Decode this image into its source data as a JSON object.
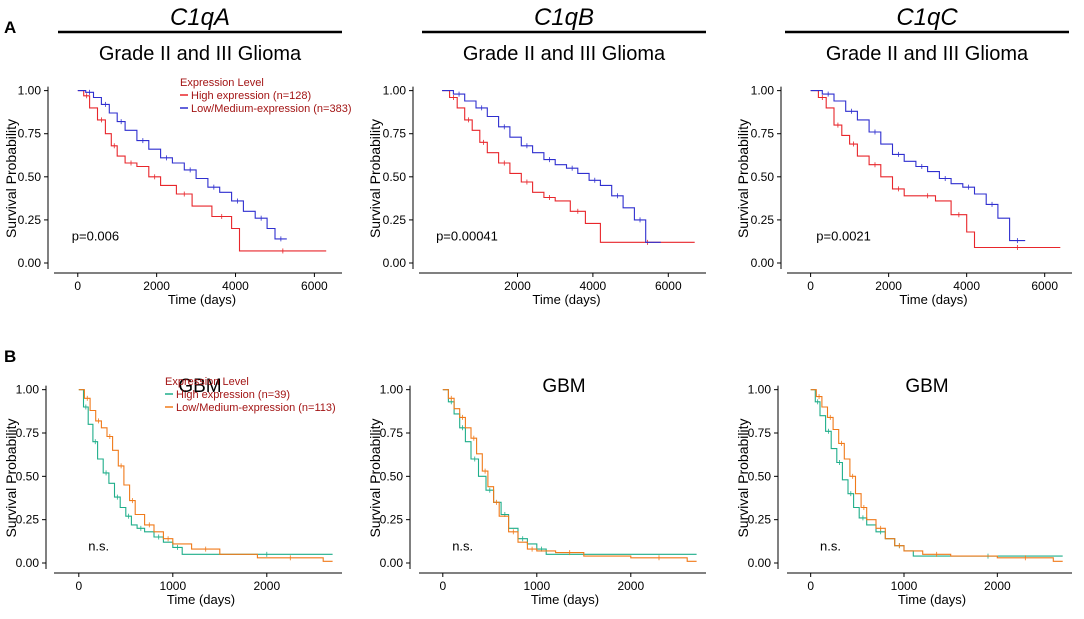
{
  "figure": {
    "panel_labels": [
      "A",
      "B"
    ],
    "gene_headers": [
      "C1qA",
      "C1qB",
      "C1qC"
    ],
    "row_titles": [
      "Grade II and III Glioma",
      "GBM"
    ]
  },
  "legend_title": "Expression Level",
  "colors": {
    "lgg_high": "#e8262b",
    "lgg_low": "#2f2fcf",
    "gbm_high": "#1fae8a",
    "gbm_low": "#f07a1a",
    "legend_text": "#a31515"
  },
  "chart_data": [
    {
      "id": "A1",
      "type": "line",
      "gene": "C1qA",
      "title": "Grade II and III Glioma",
      "xlabel": "Time (days)",
      "ylabel": "Survival Probability",
      "xlim": [
        -400,
        6700
      ],
      "ylim": [
        0,
        1.05
      ],
      "xticks": [
        0,
        2000,
        4000,
        6000
      ],
      "yticks": [
        0.0,
        0.25,
        0.5,
        0.75,
        1.0
      ],
      "ytick_labels": [
        "0.00",
        "0.25",
        "0.50",
        "0.75",
        "1.00"
      ],
      "annotation": "p=0.006",
      "annotation_at": [
        0,
        0.16
      ],
      "legend": {
        "show": true,
        "title": "Expression Level"
      },
      "series": [
        {
          "name": "High expression (n=128)",
          "color": "#e8262b",
          "x": [
            0,
            150,
            300,
            500,
            700,
            850,
            1000,
            1200,
            1500,
            1800,
            2100,
            2500,
            2900,
            3400,
            3900,
            4100,
            6300
          ],
          "y": [
            1.0,
            0.97,
            0.9,
            0.83,
            0.75,
            0.68,
            0.62,
            0.58,
            0.56,
            0.5,
            0.45,
            0.4,
            0.33,
            0.27,
            0.2,
            0.07,
            0.07
          ]
        },
        {
          "name": "Low/Medium-expression (n=383)",
          "color": "#2f2fcf",
          "x": [
            0,
            200,
            400,
            600,
            800,
            1000,
            1200,
            1500,
            1800,
            2100,
            2400,
            2700,
            3000,
            3300,
            3600,
            3900,
            4200,
            4500,
            4800,
            5000,
            5300
          ],
          "y": [
            1.0,
            0.99,
            0.96,
            0.92,
            0.87,
            0.82,
            0.77,
            0.71,
            0.66,
            0.61,
            0.58,
            0.54,
            0.49,
            0.44,
            0.41,
            0.36,
            0.3,
            0.26,
            0.2,
            0.14,
            0.14
          ]
        }
      ]
    },
    {
      "id": "A2",
      "type": "line",
      "gene": "C1qB",
      "title": "Grade II and III Glioma",
      "xlabel": "Time (days)",
      "ylabel": "Survival Probability",
      "xlim": [
        -400,
        7000
      ],
      "ylim": [
        0,
        1.05
      ],
      "xticks": [
        2000,
        4000,
        6000
      ],
      "yticks": [
        0.0,
        0.25,
        0.5,
        0.75,
        1.0
      ],
      "ytick_labels": [
        "0.00",
        "0.25",
        "0.50",
        "0.75",
        "1.00"
      ],
      "annotation": "p=0.00041",
      "annotation_at": [
        0,
        0.16
      ],
      "legend": {
        "show": false
      },
      "series": [
        {
          "name": "High expression (n=128)",
          "color": "#e8262b",
          "x": [
            0,
            200,
            400,
            600,
            800,
            1000,
            1200,
            1500,
            1800,
            2100,
            2400,
            2700,
            3000,
            3400,
            3800,
            4200,
            6700
          ],
          "y": [
            1.0,
            0.96,
            0.9,
            0.83,
            0.77,
            0.7,
            0.64,
            0.58,
            0.52,
            0.47,
            0.41,
            0.38,
            0.36,
            0.3,
            0.23,
            0.12,
            0.12
          ]
        },
        {
          "name": "Low/Medium-expression (n=383)",
          "color": "#2f2fcf",
          "x": [
            0,
            300,
            600,
            900,
            1200,
            1500,
            1800,
            2100,
            2400,
            2700,
            3000,
            3300,
            3600,
            3900,
            4200,
            4500,
            4800,
            5100,
            5400,
            5800
          ],
          "y": [
            1.0,
            0.98,
            0.94,
            0.9,
            0.85,
            0.79,
            0.73,
            0.68,
            0.64,
            0.6,
            0.57,
            0.55,
            0.52,
            0.48,
            0.45,
            0.39,
            0.32,
            0.25,
            0.12,
            0.12
          ]
        }
      ]
    },
    {
      "id": "A3",
      "type": "line",
      "gene": "C1qC",
      "title": "Grade II and III Glioma",
      "xlabel": "Time (days)",
      "ylabel": "Survival Probability",
      "xlim": [
        -400,
        6700
      ],
      "ylim": [
        0,
        1.05
      ],
      "xticks": [
        0,
        2000,
        4000,
        6000
      ],
      "yticks": [
        0.0,
        0.25,
        0.5,
        0.75,
        1.0
      ],
      "ytick_labels": [
        "0.00",
        "0.25",
        "0.50",
        "0.75",
        "1.00"
      ],
      "annotation": "p=0.0021",
      "annotation_at": [
        300,
        0.16
      ],
      "legend": {
        "show": false
      },
      "series": [
        {
          "name": "High expression (n=128)",
          "color": "#e8262b",
          "x": [
            0,
            200,
            400,
            600,
            800,
            1000,
            1200,
            1500,
            1800,
            2100,
            2400,
            2800,
            3200,
            3600,
            4000,
            4200,
            6400
          ],
          "y": [
            1.0,
            0.96,
            0.9,
            0.8,
            0.74,
            0.69,
            0.62,
            0.57,
            0.5,
            0.43,
            0.39,
            0.39,
            0.36,
            0.28,
            0.18,
            0.09,
            0.09
          ]
        },
        {
          "name": "Low/Medium-expression (n=383)",
          "color": "#2f2fcf",
          "x": [
            0,
            300,
            600,
            900,
            1200,
            1500,
            1800,
            2100,
            2400,
            2700,
            3000,
            3300,
            3600,
            3900,
            4200,
            4500,
            4800,
            5100,
            5500
          ],
          "y": [
            1.0,
            0.98,
            0.94,
            0.88,
            0.83,
            0.76,
            0.69,
            0.63,
            0.59,
            0.56,
            0.53,
            0.49,
            0.46,
            0.44,
            0.4,
            0.34,
            0.26,
            0.13,
            0.13
          ]
        }
      ]
    },
    {
      "id": "B1",
      "type": "line",
      "gene": "C1qA",
      "title": "GBM",
      "xlabel": "Time (days)",
      "ylabel": "Survival Probability",
      "xlim": [
        -200,
        2800
      ],
      "ylim": [
        0,
        1.05
      ],
      "xticks": [
        0,
        1000,
        2000
      ],
      "yticks": [
        0.0,
        0.25,
        0.5,
        0.75,
        1.0
      ],
      "ytick_labels": [
        "0.00",
        "0.25",
        "0.50",
        "0.75",
        "1.00"
      ],
      "annotation": "n.s.",
      "annotation_at": [
        100,
        0.1
      ],
      "legend": {
        "show": true,
        "title": "Expression Level"
      },
      "series": [
        {
          "name": "High expression (n=39)",
          "color": "#1fae8a",
          "x": [
            0,
            50,
            100,
            150,
            200,
            260,
            320,
            380,
            440,
            500,
            560,
            620,
            700,
            800,
            900,
            1000,
            1100,
            1300,
            2700
          ],
          "y": [
            1.0,
            0.9,
            0.8,
            0.7,
            0.6,
            0.52,
            0.46,
            0.38,
            0.32,
            0.27,
            0.22,
            0.2,
            0.18,
            0.15,
            0.12,
            0.09,
            0.05,
            0.05,
            0.05
          ]
        },
        {
          "name": "Low/Medium-expression (n=113)",
          "color": "#f07a1a",
          "x": [
            0,
            60,
            120,
            180,
            240,
            300,
            360,
            420,
            480,
            540,
            600,
            700,
            800,
            900,
            1000,
            1200,
            1500,
            1900,
            2600,
            2700
          ],
          "y": [
            1.0,
            0.95,
            0.88,
            0.82,
            0.78,
            0.73,
            0.65,
            0.56,
            0.45,
            0.36,
            0.28,
            0.22,
            0.18,
            0.14,
            0.11,
            0.08,
            0.05,
            0.03,
            0.01,
            0.01
          ]
        }
      ]
    },
    {
      "id": "B2",
      "type": "line",
      "gene": "C1qB",
      "title": "GBM",
      "xlabel": "Time (days)",
      "ylabel": "Survival Probability",
      "xlim": [
        -200,
        2800
      ],
      "ylim": [
        0,
        1.05
      ],
      "xticks": [
        0,
        1000,
        2000
      ],
      "yticks": [
        0.0,
        0.25,
        0.5,
        0.75,
        1.0
      ],
      "ytick_labels": [
        "0.00",
        "0.25",
        "0.50",
        "0.75",
        "1.00"
      ],
      "annotation": "n.s.",
      "annotation_at": [
        100,
        0.1
      ],
      "legend": {
        "show": false
      },
      "series": [
        {
          "name": "High expression (n=39)",
          "color": "#1fae8a",
          "x": [
            0,
            60,
            120,
            180,
            240,
            300,
            380,
            460,
            540,
            620,
            700,
            800,
            900,
            1000,
            1100,
            2700
          ],
          "y": [
            1.0,
            0.93,
            0.86,
            0.78,
            0.7,
            0.6,
            0.5,
            0.42,
            0.35,
            0.28,
            0.2,
            0.14,
            0.11,
            0.08,
            0.05,
            0.05
          ]
        },
        {
          "name": "Low/Medium-expression (n=113)",
          "color": "#f07a1a",
          "x": [
            0,
            60,
            120,
            180,
            240,
            300,
            360,
            420,
            480,
            540,
            600,
            700,
            800,
            900,
            1000,
            1200,
            1500,
            2000,
            2600,
            2700
          ],
          "y": [
            1.0,
            0.95,
            0.89,
            0.84,
            0.78,
            0.72,
            0.63,
            0.53,
            0.44,
            0.35,
            0.27,
            0.18,
            0.12,
            0.08,
            0.07,
            0.06,
            0.04,
            0.03,
            0.01,
            0.01
          ]
        }
      ]
    },
    {
      "id": "B3",
      "type": "line",
      "gene": "C1qC",
      "title": "GBM",
      "xlabel": "Time (days)",
      "ylabel": "Survival Probability",
      "xlim": [
        -200,
        2800
      ],
      "ylim": [
        0,
        1.05
      ],
      "xticks": [
        0,
        1000,
        2000
      ],
      "yticks": [
        0.0,
        0.25,
        0.5,
        0.75,
        1.0
      ],
      "ytick_labels": [
        "0.00",
        "0.25",
        "0.50",
        "0.75",
        "1.00"
      ],
      "annotation": "n.s.",
      "annotation_at": [
        100,
        0.1
      ],
      "legend": {
        "show": false
      },
      "series": [
        {
          "name": "High expression (n=39)",
          "color": "#1fae8a",
          "x": [
            0,
            50,
            100,
            160,
            220,
            280,
            340,
            400,
            460,
            520,
            600,
            700,
            800,
            900,
            1000,
            1100,
            2700
          ],
          "y": [
            1.0,
            0.93,
            0.85,
            0.76,
            0.66,
            0.58,
            0.48,
            0.4,
            0.32,
            0.26,
            0.22,
            0.18,
            0.14,
            0.1,
            0.07,
            0.04,
            0.04
          ]
        },
        {
          "name": "Low/Medium-expression (n=113)",
          "color": "#f07a1a",
          "x": [
            0,
            60,
            120,
            180,
            240,
            300,
            360,
            420,
            480,
            540,
            600,
            700,
            800,
            900,
            1000,
            1200,
            1500,
            2000,
            2600,
            2700
          ],
          "y": [
            1.0,
            0.96,
            0.9,
            0.84,
            0.77,
            0.69,
            0.6,
            0.5,
            0.4,
            0.32,
            0.25,
            0.2,
            0.14,
            0.1,
            0.07,
            0.05,
            0.04,
            0.03,
            0.01,
            0.01
          ]
        }
      ]
    }
  ]
}
